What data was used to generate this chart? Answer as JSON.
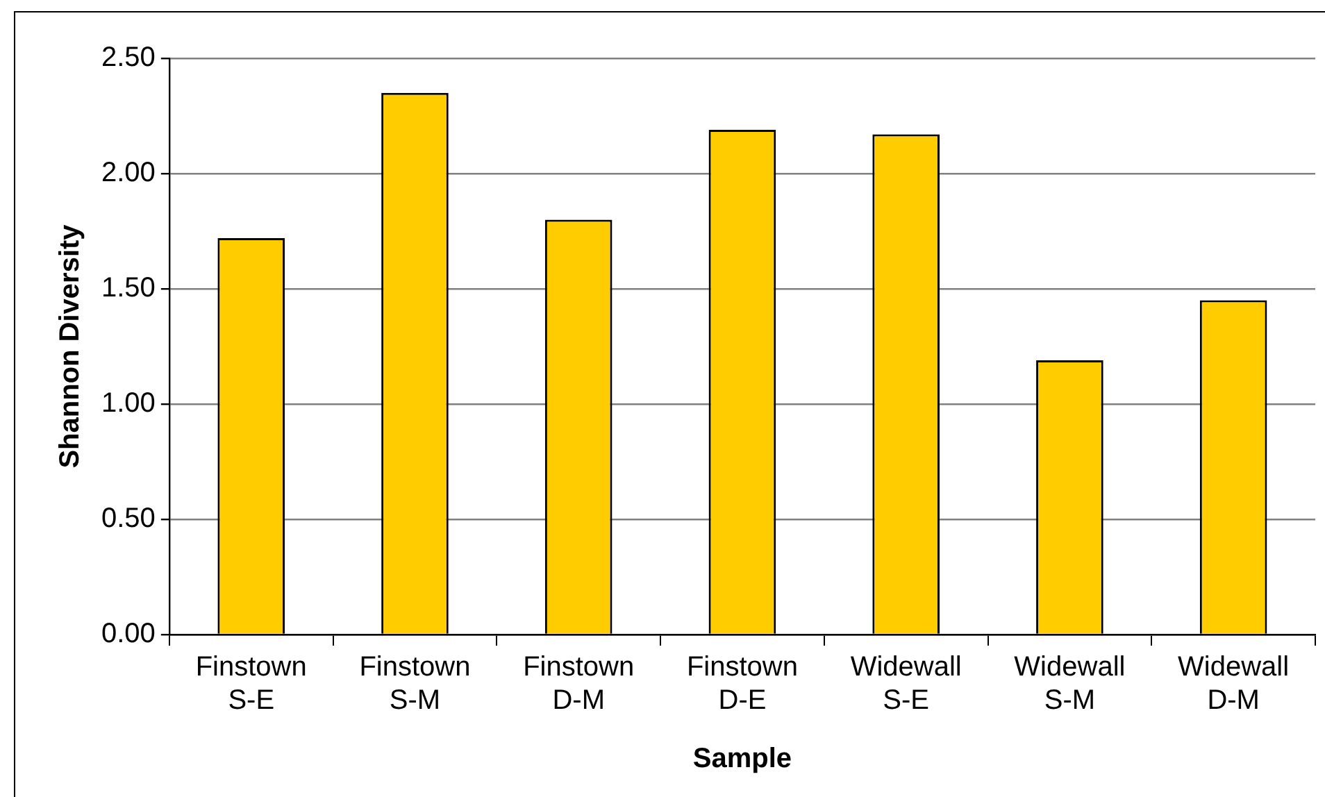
{
  "chart_data": {
    "type": "bar",
    "xlabel": "Sample",
    "ylabel": "Shannon Diversity",
    "categories": [
      "Finstown S-E",
      "Finstown S-M",
      "Finstown D-M",
      "Finstown D-E",
      "Widewall S-E",
      "Widewall S-M",
      "Widewall D-M"
    ],
    "values": [
      1.72,
      2.35,
      1.8,
      2.19,
      2.17,
      1.19,
      1.45
    ],
    "color": "#ffcc00",
    "ylim": [
      0,
      2.5
    ],
    "yticks": [
      {
        "value": 0,
        "label": "0.00"
      },
      {
        "value": 0.5,
        "label": "0.50"
      },
      {
        "value": 1,
        "label": "1.00"
      },
      {
        "value": 1.5,
        "label": "1.50"
      },
      {
        "value": 2,
        "label": "2.00"
      },
      {
        "value": 2.5,
        "label": "2.50"
      }
    ],
    "grid": "y"
  }
}
